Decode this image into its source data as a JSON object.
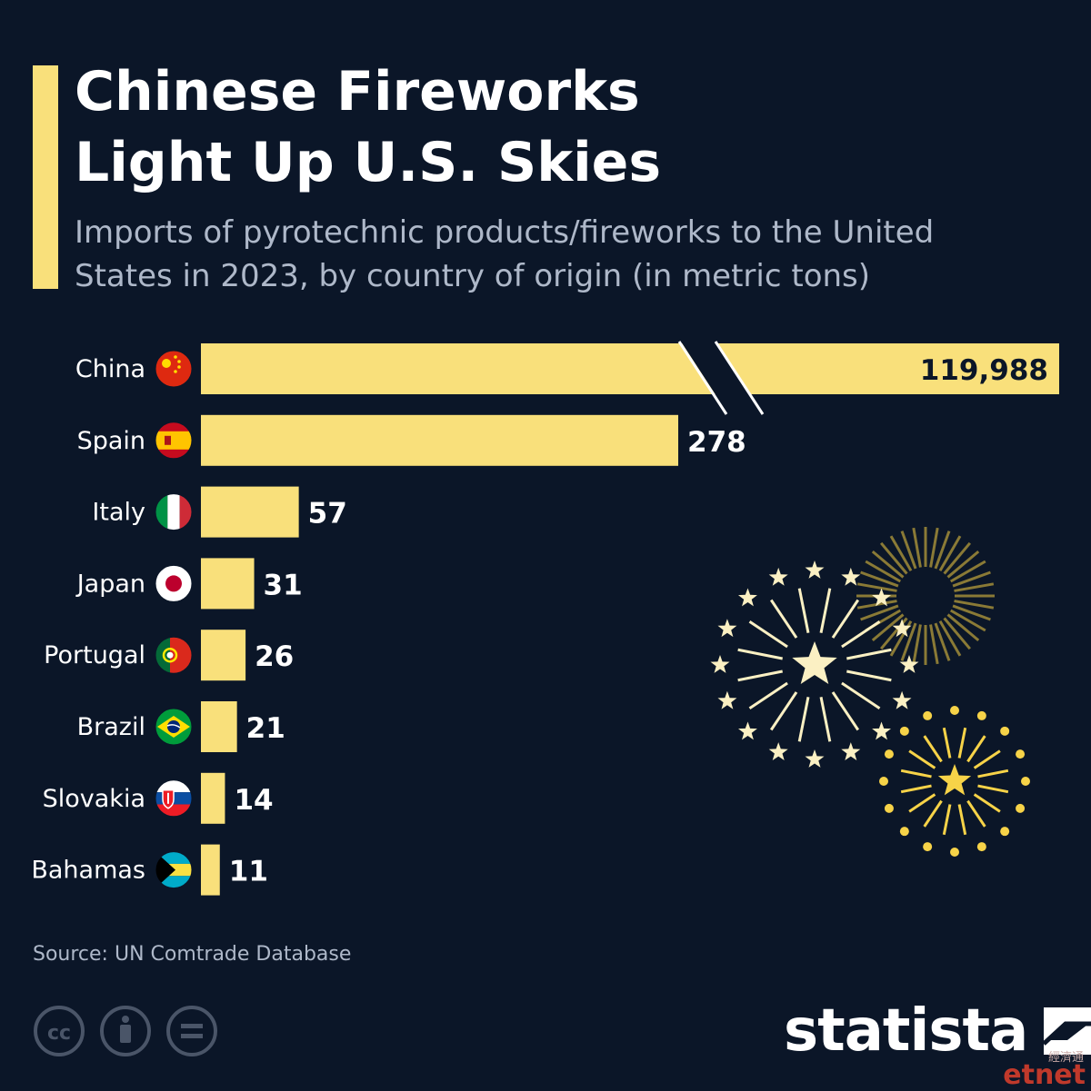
{
  "header": {
    "title_line1": "Chinese Fireworks",
    "title_line2": "Light Up U.S. Skies",
    "subtitle_line1": "Imports of pyrotechnic products/fireworks to the United",
    "subtitle_line2": "States in 2023, by country of origin (in metric tons)"
  },
  "chart_data": {
    "type": "bar",
    "orientation": "horizontal",
    "axis_break": true,
    "categories": [
      "China",
      "Spain",
      "Italy",
      "Japan",
      "Portugal",
      "Brazil",
      "Slovakia",
      "Bahamas"
    ],
    "values": [
      119988,
      278,
      57,
      31,
      26,
      21,
      14,
      11
    ],
    "value_labels": [
      "119,988",
      "278",
      "57",
      "31",
      "26",
      "21",
      "14",
      "11"
    ],
    "title": "Chinese Fireworks Light Up U.S. Skies",
    "xlabel": "",
    "ylabel": "",
    "grid": false,
    "legend": "none"
  },
  "flags": [
    "china-flag-icon",
    "spain-flag-icon",
    "italy-flag-icon",
    "japan-flag-icon",
    "portugal-flag-icon",
    "brazil-flag-icon",
    "slovakia-flag-icon",
    "bahamas-flag-icon"
  ],
  "colors": {
    "background": "#0b1628",
    "bar": "#f9e07b",
    "accent": "#f9e07b",
    "text": "#ffffff",
    "muted_text": "#aeb8c9",
    "value_on_bar": "#0b1628"
  },
  "footer": {
    "source": "Source: UN Comtrade Database",
    "logo": "statista",
    "cc_icons": [
      "creative-commons-icon",
      "attribution-icon",
      "no-derivatives-icon"
    ]
  },
  "watermark": {
    "text": "etnet",
    "chinese": "經濟通"
  }
}
